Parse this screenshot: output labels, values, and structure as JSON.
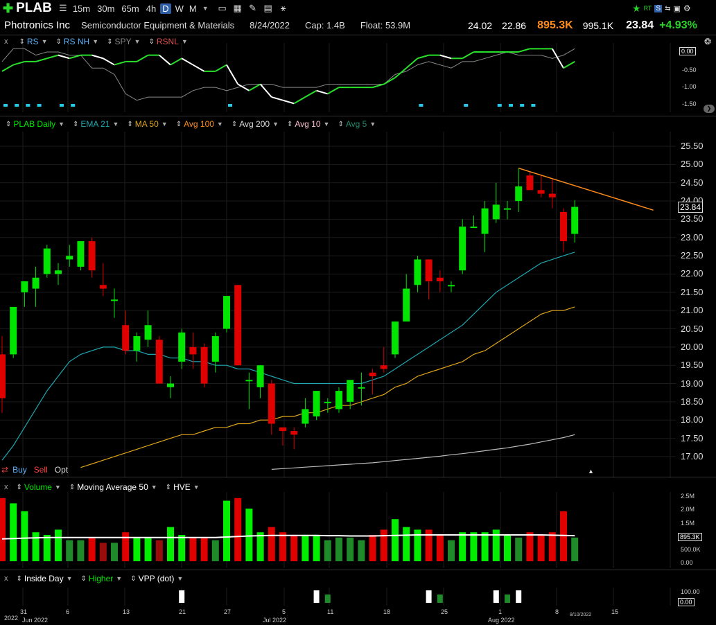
{
  "header": {
    "symbol": "PLAB",
    "timeframes": [
      "15m",
      "30m",
      "65m",
      "4h",
      "D",
      "W",
      "M"
    ],
    "selected_timeframe": "D",
    "company": "Photronics Inc",
    "sector": "Semiconductor Equipment & Materials",
    "date": "8/24/2022",
    "cap": "Cap: 1.4B",
    "float": "Float: 53.9M",
    "high": "24.02",
    "low": "22.86",
    "volume": "895.3K",
    "avg_volume": "995.1K",
    "last": "23.84",
    "change": "+4.93%"
  },
  "colors": {
    "up": "#00e600",
    "down": "#e00000",
    "orange": "#ff8c1a",
    "teal": "#1fa6b0",
    "gold": "#e0a51a",
    "avg200": "#bbbbbb"
  },
  "rs_legend": [
    {
      "label": "RS",
      "color": "#5ab4ff"
    },
    {
      "label": "RS NH",
      "color": "#5ab4ff"
    },
    {
      "label": "SPY",
      "color": "#888888"
    },
    {
      "label": "RSNL",
      "color": "#e05050"
    }
  ],
  "rs_axis": {
    "ticks": [
      "0.00",
      "-0.50",
      "-1.00",
      "-1.50"
    ],
    "tag": "0.00"
  },
  "price_legend": [
    {
      "label": "PLAB Daily",
      "color": "#00e600"
    },
    {
      "label": "EMA 21",
      "color": "#1fa6b0"
    },
    {
      "label": "MA 50",
      "color": "#e0a51a"
    },
    {
      "label": "Avg 100",
      "color": "#ff8c1a"
    },
    {
      "label": "Avg 200",
      "color": "#dddddd"
    },
    {
      "label": "Avg 10",
      "color": "#ffc0d0"
    },
    {
      "label": "Avg 5",
      "color": "#1f8a6a"
    }
  ],
  "trade": {
    "buy": "Buy",
    "sell": "Sell",
    "opt": "Opt"
  },
  "volume_legend": [
    {
      "label": "Volume",
      "color": "#00e600"
    },
    {
      "label": "Moving Average 50",
      "color": "#ffffff"
    },
    {
      "label": "HVE",
      "color": "#ffffff"
    }
  ],
  "volume_axis": {
    "ticks": [
      "2.5M",
      "2.0M",
      "1.5M",
      "500.0K",
      "0.00"
    ],
    "tag": "895.3K"
  },
  "ind_legend": [
    {
      "label": "Inside Day",
      "color": "#ffffff"
    },
    {
      "label": "Higher",
      "color": "#00e600"
    },
    {
      "label": "VPP (dot)",
      "color": "#ffffff"
    }
  ],
  "ind_axis": {
    "ticks": [
      "100.00"
    ],
    "tag": "0.00"
  },
  "date_axis": {
    "labels": [
      "2022",
      "31",
      "Jun 2022",
      "6",
      "13",
      "21",
      "27",
      "Jul 2022",
      "5",
      "11",
      "18",
      "25",
      "1",
      "Aug 2022",
      "8",
      "15"
    ],
    "hover_date": "8/10/2022"
  },
  "chart_data": {
    "type": "candlestick",
    "y_ticks": [
      25.5,
      25.0,
      24.5,
      24.0,
      23.5,
      23.0,
      22.5,
      22.0,
      21.5,
      21.0,
      20.5,
      20.0,
      19.5,
      19.0,
      18.5,
      18.0,
      17.5,
      17.0
    ],
    "ylim": [
      16.6,
      25.9
    ],
    "last_price": 23.84,
    "candles": [
      [
        19.8,
        20.3,
        18.2,
        18.6
      ],
      [
        19.8,
        21.1,
        19.7,
        21.1
      ],
      [
        21.5,
        21.8,
        21.1,
        21.8
      ],
      [
        21.6,
        22.2,
        21.1,
        21.9
      ],
      [
        22.0,
        22.8,
        21.9,
        22.7
      ],
      [
        22.0,
        22.3,
        21.7,
        22.1
      ],
      [
        22.4,
        22.8,
        22.2,
        22.5
      ],
      [
        22.2,
        22.9,
        22.1,
        22.9
      ],
      [
        22.9,
        23.0,
        21.9,
        22.1
      ],
      [
        21.7,
        22.3,
        21.4,
        21.6
      ],
      [
        21.3,
        21.6,
        20.8,
        21.3
      ],
      [
        20.6,
        21.0,
        19.8,
        19.9
      ],
      [
        19.9,
        20.4,
        19.6,
        20.3
      ],
      [
        20.2,
        21.0,
        20.0,
        20.6
      ],
      [
        20.2,
        20.3,
        19.0,
        19.0
      ],
      [
        18.9,
        19.2,
        18.6,
        19.0
      ],
      [
        19.6,
        20.5,
        19.4,
        20.4
      ],
      [
        20.0,
        20.4,
        19.4,
        19.8
      ],
      [
        20.0,
        20.1,
        18.9,
        19.0
      ],
      [
        19.6,
        20.4,
        19.3,
        20.3
      ],
      [
        20.5,
        21.4,
        20.4,
        21.4
      ],
      [
        21.7,
        21.7,
        19.5,
        19.5
      ],
      [
        19.1,
        19.3,
        18.3,
        19.1
      ],
      [
        18.9,
        19.5,
        18.6,
        19.5
      ],
      [
        19.0,
        19.1,
        17.6,
        17.9
      ],
      [
        17.8,
        17.8,
        17.3,
        17.7
      ],
      [
        17.7,
        17.8,
        17.2,
        17.6
      ],
      [
        17.9,
        18.6,
        17.8,
        18.3
      ],
      [
        18.1,
        18.8,
        18.0,
        18.8
      ],
      [
        18.5,
        18.6,
        18.2,
        18.5
      ],
      [
        18.3,
        18.9,
        18.2,
        18.8
      ],
      [
        18.5,
        19.1,
        18.3,
        19.1
      ],
      [
        18.9,
        19.3,
        18.4,
        18.9
      ],
      [
        19.3,
        19.4,
        18.7,
        19.2
      ],
      [
        19.5,
        20.0,
        19.3,
        19.4
      ],
      [
        19.8,
        20.7,
        19.7,
        20.7
      ],
      [
        20.7,
        22.0,
        20.7,
        21.6
      ],
      [
        21.7,
        22.5,
        21.5,
        22.4
      ],
      [
        22.4,
        22.4,
        21.3,
        21.8
      ],
      [
        21.9,
        22.1,
        21.5,
        21.8
      ],
      [
        21.7,
        21.8,
        21.5,
        21.7
      ],
      [
        22.1,
        23.5,
        22.0,
        23.3
      ],
      [
        23.3,
        23.6,
        23.3,
        23.3
      ],
      [
        23.1,
        24.0,
        22.6,
        23.8
      ],
      [
        23.5,
        24.5,
        23.4,
        23.9
      ],
      [
        23.8,
        24.0,
        23.5,
        23.8
      ],
      [
        24.0,
        24.9,
        23.7,
        24.4
      ],
      [
        24.7,
        24.8,
        24.3,
        24.3
      ],
      [
        24.3,
        24.7,
        24.1,
        24.2
      ],
      [
        24.2,
        24.6,
        23.8,
        24.1
      ],
      [
        23.7,
        23.8,
        22.6,
        22.9
      ],
      [
        23.1,
        24.02,
        22.86,
        23.84
      ]
    ],
    "ema21": [
      16.9,
      17.3,
      17.8,
      18.3,
      18.8,
      19.2,
      19.6,
      19.8,
      19.9,
      20.0,
      20.0,
      19.9,
      19.9,
      19.8,
      19.8,
      19.7,
      19.7,
      19.6,
      19.6,
      19.5,
      19.5,
      19.4,
      19.4,
      19.3,
      19.2,
      19.1,
      19.0,
      19.0,
      19.0,
      19.0,
      19.0,
      19.0,
      19.0,
      19.1,
      19.2,
      19.4,
      19.6,
      19.8,
      20.0,
      20.2,
      20.4,
      20.6,
      20.9,
      21.2,
      21.5,
      21.7,
      21.9,
      22.1,
      22.3,
      22.4,
      22.5,
      22.6
    ],
    "ma50": [
      null,
      null,
      null,
      null,
      null,
      null,
      null,
      16.7,
      16.8,
      16.9,
      17.0,
      17.1,
      17.2,
      17.3,
      17.4,
      17.5,
      17.6,
      17.6,
      17.7,
      17.8,
      17.8,
      17.9,
      17.9,
      18.0,
      18.0,
      18.1,
      18.1,
      18.2,
      18.2,
      18.3,
      18.4,
      18.4,
      18.5,
      18.6,
      18.7,
      18.9,
      19.0,
      19.2,
      19.3,
      19.4,
      19.5,
      19.6,
      19.8,
      19.9,
      20.1,
      20.3,
      20.5,
      20.7,
      20.9,
      21.0,
      21.0,
      21.1
    ],
    "avg200": [
      null,
      null,
      null,
      null,
      null,
      null,
      null,
      null,
      null,
      null,
      null,
      null,
      null,
      null,
      null,
      null,
      null,
      null,
      null,
      null,
      null,
      null,
      null,
      null,
      16.65,
      16.67,
      16.69,
      16.71,
      16.73,
      16.75,
      16.77,
      16.79,
      16.81,
      16.83,
      16.86,
      16.89,
      16.92,
      16.95,
      16.98,
      17.01,
      17.05,
      17.08,
      17.12,
      17.16,
      17.2,
      17.24,
      17.29,
      17.34,
      17.4,
      17.46,
      17.52,
      17.6
    ],
    "trendline": {
      "from": [
        46,
        24.9
      ],
      "to": [
        58,
        23.75
      ]
    },
    "volume": [
      2.4,
      2.2,
      1.9,
      1.1,
      1.0,
      1.2,
      0.8,
      0.8,
      0.9,
      0.7,
      0.7,
      1.1,
      0.9,
      0.9,
      0.8,
      1.3,
      1.0,
      0.9,
      0.9,
      0.8,
      2.3,
      2.4,
      2.0,
      1.1,
      1.3,
      1.1,
      1.0,
      1.0,
      1.0,
      0.8,
      0.9,
      0.9,
      0.8,
      1.0,
      1.2,
      1.6,
      1.3,
      1.2,
      1.2,
      1.0,
      0.8,
      1.1,
      1.1,
      1.1,
      1.2,
      1.0,
      0.9,
      1.1,
      1.0,
      1.1,
      1.9,
      0.9
    ],
    "volume_ma50": [
      0.85,
      0.86,
      0.88,
      0.89,
      0.9,
      0.9,
      0.9,
      0.9,
      0.9,
      0.9,
      0.9,
      0.9,
      0.9,
      0.9,
      0.9,
      0.9,
      0.9,
      0.9,
      0.9,
      0.9,
      0.92,
      0.94,
      0.96,
      0.97,
      0.98,
      0.98,
      0.98,
      0.98,
      0.98,
      0.97,
      0.97,
      0.96,
      0.96,
      0.96,
      0.97,
      0.98,
      0.99,
      1.0,
      1.0,
      1.0,
      1.0,
      1.0,
      1.0,
      1.0,
      1.0,
      1.0,
      1.0,
      1.0,
      1.0,
      0.99,
      0.98,
      0.97
    ],
    "rs": [
      -0.6,
      -0.4,
      -0.3,
      -0.3,
      -0.2,
      -0.1,
      -0.2,
      -0.1,
      -0.1,
      -0.2,
      -0.4,
      -0.3,
      -0.3,
      -0.1,
      -0.1,
      -0.4,
      -0.2,
      -0.4,
      -0.6,
      -0.6,
      -0.4,
      -1.0,
      -1.2,
      -1.0,
      -1.4,
      -1.5,
      -1.6,
      -1.4,
      -1.2,
      -1.3,
      -1.1,
      -1.1,
      -1.1,
      -1.1,
      -1.0,
      -0.8,
      -0.5,
      -0.2,
      -0.1,
      -0.1,
      -0.2,
      -0.2,
      0.0,
      0.0,
      0.0,
      0.0,
      0.0,
      0.1,
      0.1,
      0.1,
      -0.5,
      -0.3
    ],
    "spy": [
      -0.3,
      0.1,
      0.1,
      -0.1,
      0.0,
      0.0,
      -0.1,
      -0.1,
      -0.5,
      -0.5,
      -0.7,
      -1.3,
      -1.5,
      -1.4,
      -1.4,
      -1.4,
      -1.4,
      -1.2,
      -1.1,
      -1.1,
      -1.2,
      -1.1,
      -1.0,
      -1.0,
      -1.0,
      -1.1,
      -1.1,
      -1.1,
      -1.1,
      -1.0,
      -1.0,
      -1.0,
      -1.0,
      -1.0,
      -1.0,
      -0.7,
      -0.6,
      -0.4,
      -0.3,
      -0.4,
      -0.5,
      -0.3,
      -0.3,
      -0.2,
      -0.1,
      0.0,
      -0.1,
      -0.1,
      -0.1,
      -0.2,
      -0.1,
      0.1
    ],
    "rs_nh_markers": [
      0,
      1,
      2,
      3,
      5,
      6,
      20,
      37,
      41,
      44,
      45,
      46,
      47
    ],
    "inside_day": [
      16,
      28,
      38,
      44,
      46
    ],
    "higher": [
      29,
      39,
      45
    ]
  }
}
